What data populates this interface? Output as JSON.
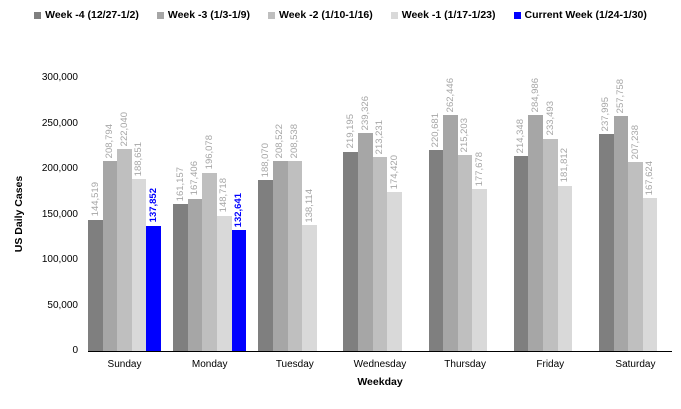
{
  "chart_data": {
    "type": "bar",
    "title": "",
    "xlabel": "Weekday",
    "ylabel": "US Daily Cases",
    "ylim": [
      0,
      300000
    ],
    "yticks": [
      0,
      50000,
      100000,
      150000,
      200000,
      250000,
      300000
    ],
    "grid": false,
    "legend_position": "top",
    "value_labels": true,
    "value_label_orientation": "vertical",
    "value_label_color": "#a6a6a6",
    "categories": [
      "Sunday",
      "Monday",
      "Tuesday",
      "Wednesday",
      "Thursday",
      "Friday",
      "Saturday"
    ],
    "series": [
      {
        "name": "Week -4 (12/27-1/2)",
        "color": "#7f7f7f",
        "label_color": "#a6a6a6",
        "bold_labels": false,
        "values": [
          144519,
          161157,
          188070,
          219195,
          220681,
          214348,
          237995
        ]
      },
      {
        "name": "Week -3 (1/3-1/9)",
        "color": "#a6a6a6",
        "label_color": "#a6a6a6",
        "bold_labels": false,
        "values": [
          208794,
          167406,
          208522,
          239326,
          262446,
          284986,
          257758
        ]
      },
      {
        "name": "Week -2 (1/10-1/16)",
        "color": "#bfbfbf",
        "label_color": "#a6a6a6",
        "bold_labels": false,
        "values": [
          222040,
          196078,
          208538,
          213231,
          215203,
          233493,
          207238
        ]
      },
      {
        "name": "Week -1 (1/17-1/23)",
        "color": "#d9d9d9",
        "label_color": "#a6a6a6",
        "bold_labels": false,
        "values": [
          188651,
          148718,
          138114,
          174420,
          177678,
          181812,
          167624
        ]
      },
      {
        "name": "Current Week (1/24-1/30)",
        "color": "#0000ff",
        "label_color": "#0000ff",
        "bold_labels": true,
        "values": [
          137852,
          132641,
          null,
          null,
          null,
          null,
          null
        ]
      }
    ]
  }
}
